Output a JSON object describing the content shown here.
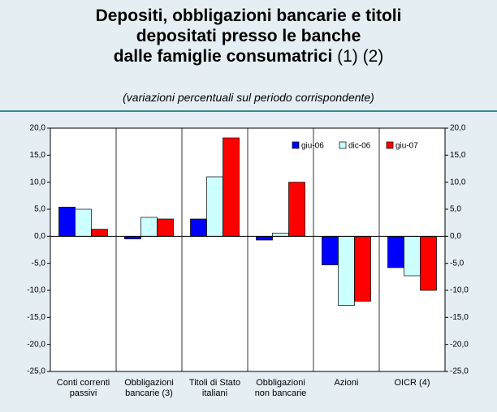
{
  "chart_data": {
    "type": "bar",
    "title": [
      "Depositi, obbligazioni bancarie e titoli",
      "depositati presso le banche",
      "dalle famiglie consumatrici"
    ],
    "title_note": "(1) (2)",
    "subtitle": "(variazioni percentuali sul periodo corrispondente)",
    "categories": [
      "Conti correnti passivi",
      "Obbligazioni bancarie (3)",
      "Titoli di Stato italiani",
      "Obbligazioni non bancarie",
      "Azioni",
      "OICR (4)"
    ],
    "series": [
      {
        "name": "giu-06",
        "color": "#0000ff",
        "values": [
          5.4,
          -0.5,
          3.2,
          -0.7,
          -5.3,
          -5.8
        ]
      },
      {
        "name": "dic-06",
        "color": "#ccffff",
        "values": [
          5.0,
          3.5,
          11.0,
          0.6,
          -12.8,
          -7.3
        ]
      },
      {
        "name": "giu-07",
        "color": "#ff0000",
        "values": [
          1.3,
          3.2,
          18.2,
          10.0,
          -12.0,
          -10.0
        ]
      }
    ],
    "ylim": [
      -25,
      20
    ],
    "yticks": [
      {
        "value": -25,
        "label": "-25,0"
      },
      {
        "value": -20,
        "label": "-20,0"
      },
      {
        "value": -15,
        "label": "-15,0"
      },
      {
        "value": -10,
        "label": "-10,0"
      },
      {
        "value": -5,
        "label": "-5,0"
      },
      {
        "value": 0,
        "label": "0,0"
      },
      {
        "value": 5,
        "label": "5,0"
      },
      {
        "value": 10,
        "label": "10,0"
      },
      {
        "value": 15,
        "label": "15,0"
      },
      {
        "value": 20,
        "label": "20,0"
      }
    ],
    "legend": "top-right"
  }
}
